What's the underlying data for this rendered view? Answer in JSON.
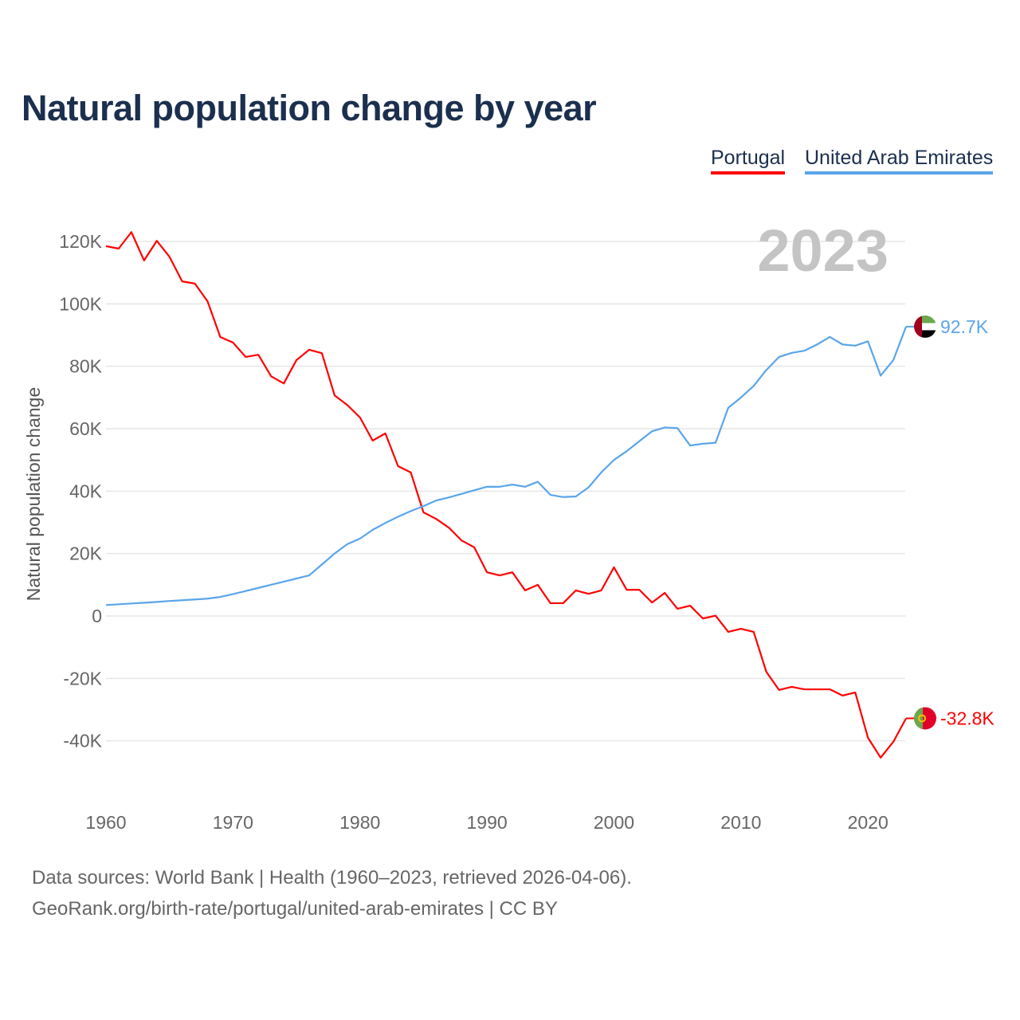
{
  "title": "Natural population change by year",
  "year_watermark": "2023",
  "footer": {
    "line1": "Data sources: World Bank | Health (1960–2023, retrieved 2026-04-06).",
    "line2": "GeoRank.org/birth-rate/portugal/united-arab-emirates | CC BY"
  },
  "chart_data": {
    "type": "line",
    "title": "Natural population change by year",
    "xlabel": "",
    "ylabel": "Natural population change",
    "xlim": [
      1960,
      2023
    ],
    "ylim": [
      -50000,
      130000
    ],
    "yticks": [
      -40000,
      -20000,
      0,
      20000,
      40000,
      60000,
      80000,
      100000,
      120000
    ],
    "ytick_labels": [
      "-40K",
      "-20K",
      "0",
      "20K",
      "40K",
      "60K",
      "80K",
      "100K",
      "120K"
    ],
    "xticks": [
      1960,
      1970,
      1980,
      1990,
      2000,
      2010,
      2020
    ],
    "xtick_labels": [
      "1960",
      "1970",
      "1980",
      "1990",
      "2000",
      "2010",
      "2020"
    ],
    "grid": true,
    "legend_position": "top-right",
    "x_start": 1960,
    "series": [
      {
        "name": "Portugal",
        "color": "#ff0000",
        "end_label": "-32.8K",
        "flag": "portugal-flag",
        "values": [
          118500,
          117700,
          123000,
          113900,
          120200,
          115100,
          107200,
          106500,
          100800,
          89400,
          87600,
          83000,
          83700,
          76800,
          74500,
          82000,
          85300,
          84200,
          70700,
          67600,
          63600,
          56200,
          58500,
          48000,
          46000,
          33200,
          31100,
          28300,
          24200,
          22000,
          14000,
          13000,
          14000,
          8200,
          10000,
          4100,
          4100,
          8200,
          7100,
          8200,
          15600,
          8400,
          8400,
          4300,
          7400,
          2300,
          3300,
          -800,
          100,
          -5100,
          -4100,
          -5100,
          -17900,
          -23700,
          -22700,
          -23500,
          -23500,
          -23500,
          -25500,
          -24500,
          -39000,
          -45400,
          -40300,
          -32800
        ]
      },
      {
        "name": "United Arab Emirates",
        "color": "#5aa5ea",
        "end_label": "92.7K",
        "flag": "uae-flag",
        "values": [
          3500,
          3750,
          4000,
          4250,
          4500,
          4800,
          5050,
          5300,
          5550,
          6100,
          7000,
          8000,
          9000,
          10000,
          11000,
          12000,
          13000,
          16500,
          20000,
          23000,
          24800,
          27600,
          29800,
          31800,
          33600,
          35200,
          37000,
          38000,
          39100,
          40300,
          41400,
          41400,
          42100,
          41400,
          43000,
          38800,
          38100,
          38300,
          41200,
          46000,
          50000,
          52800,
          56000,
          59200,
          60400,
          60200,
          54600,
          55200,
          55500,
          66700,
          70000,
          73700,
          78800,
          83000,
          84300,
          85000,
          87000,
          89400,
          87000,
          86600,
          88000,
          77000,
          82000,
          92700
        ]
      }
    ]
  }
}
